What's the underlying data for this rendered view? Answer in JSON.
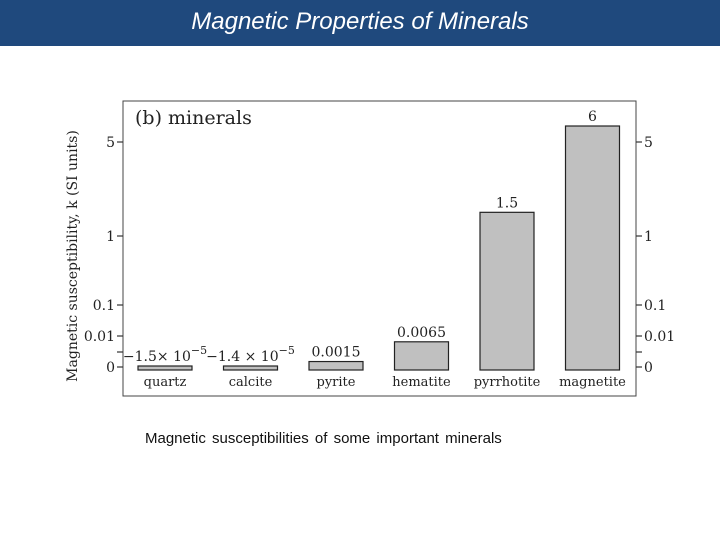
{
  "header": {
    "title": "Magnetic Properties of Minerals"
  },
  "caption": "Magnetic  susceptibilities of some  important minerals",
  "chart_data": {
    "type": "bar",
    "title": "(b)  minerals",
    "ylabel": "Magnetic susceptibility, k (SI units)",
    "xlabel": "",
    "categories": [
      "quartz",
      "calcite",
      "pyrite",
      "hematite",
      "pyrrhotite",
      "magnetite"
    ],
    "values": [
      -1.5e-05,
      -1.4e-05,
      0.0015,
      0.0065,
      1.5,
      6
    ],
    "value_labels": [
      {
        "base": "−1.5× 10",
        "exp": "−5"
      },
      {
        "base": "−1.4 × 10",
        "exp": "−5"
      },
      {
        "base": "0.0015",
        "exp": ""
      },
      {
        "base": "0.0065",
        "exp": ""
      },
      {
        "base": "1.5",
        "exp": ""
      },
      {
        "base": "6",
        "exp": ""
      }
    ],
    "y_ticks": [
      0,
      0.01,
      0.1,
      1,
      5
    ],
    "y_tick_labels": [
      "0",
      "0.01",
      "0.1",
      "1",
      "5"
    ],
    "scale": "nonlinear (log-like)",
    "grid": false,
    "bar_color": "#c0c0c0"
  }
}
